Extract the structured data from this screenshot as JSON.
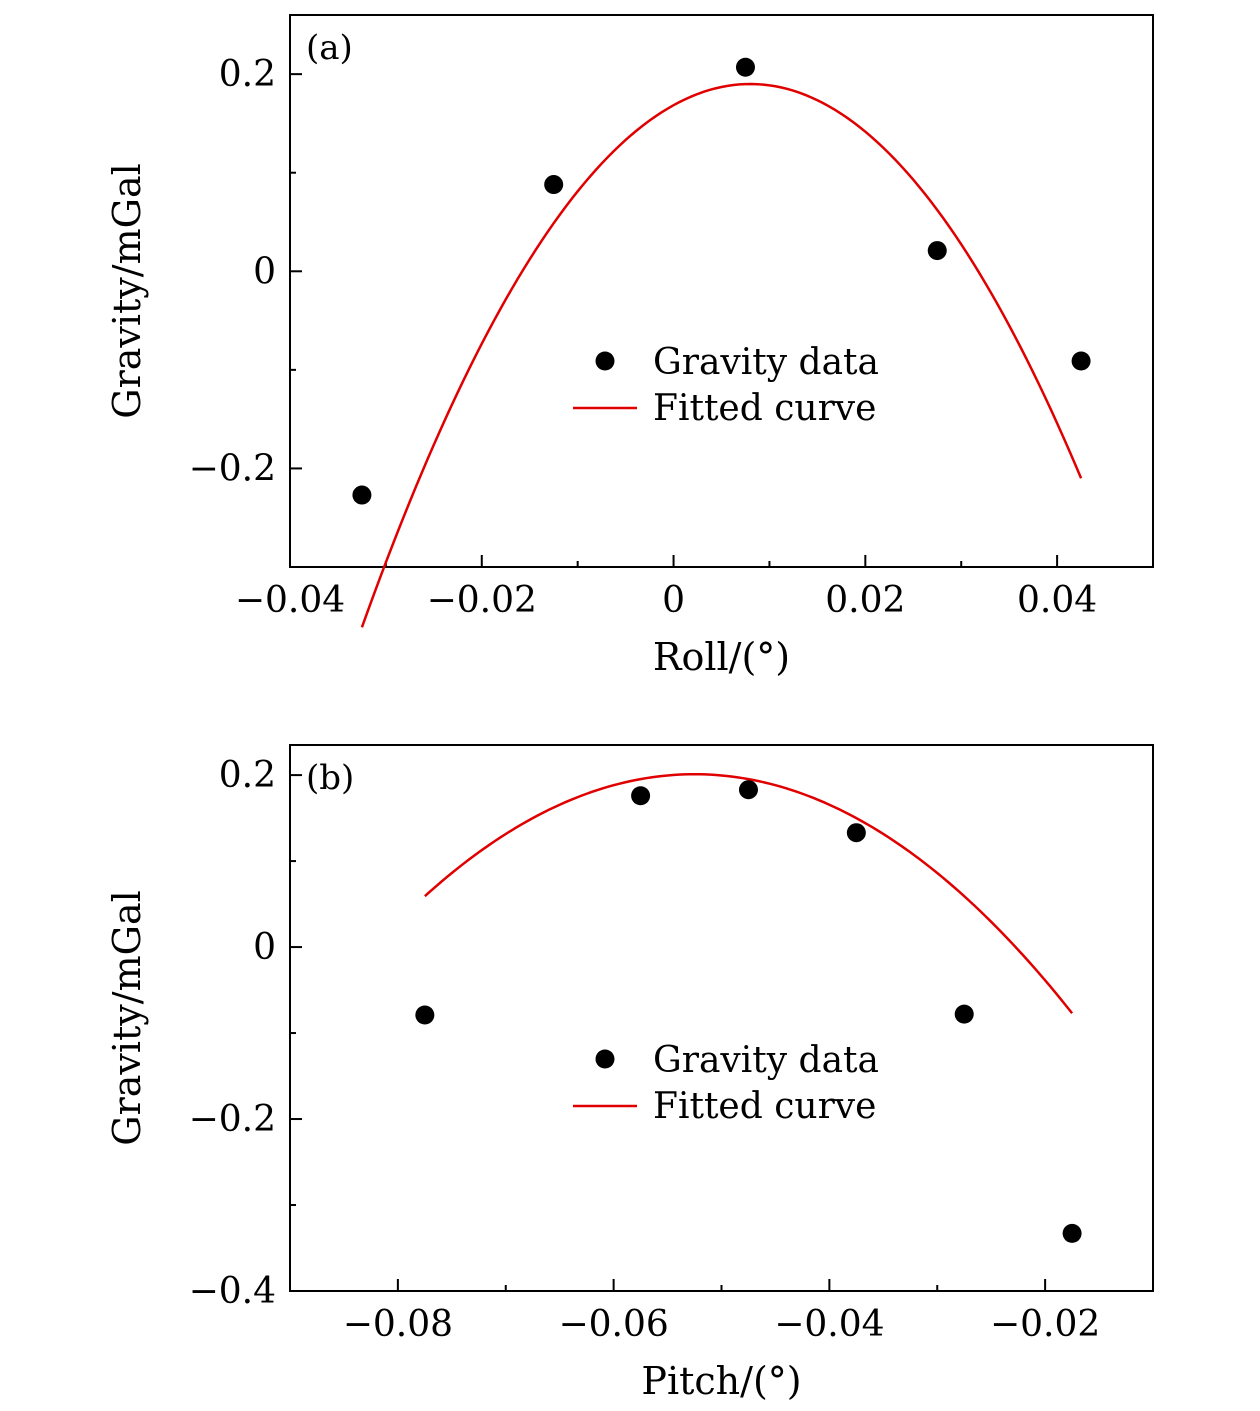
{
  "chart_data": [
    {
      "type": "scatter",
      "panel_label": "(a)",
      "xlabel": "Roll/(°)",
      "ylabel": "Gravity/mGal",
      "xlim": [
        -0.04,
        0.05
      ],
      "ylim": [
        -0.3,
        0.26
      ],
      "x_major_ticks": [
        -0.04,
        -0.02,
        0,
        0.02,
        0.04
      ],
      "x_tick_labels": [
        "−0.04",
        "−0.02",
        "0",
        "0.02",
        "0.04"
      ],
      "x_minor_ticks": [
        -0.03,
        -0.01,
        0.01,
        0.03
      ],
      "y_major_ticks": [
        -0.2,
        0,
        0.2
      ],
      "y_tick_labels": [
        "−0.2",
        "0",
        "0.2"
      ],
      "y_minor_ticks": [
        -0.1,
        0.1
      ],
      "legend_position": "center-right",
      "series": [
        {
          "name": "Gravity data",
          "kind": "points",
          "color": "#000000",
          "x": [
            -0.0325,
            -0.0125,
            0.0075,
            0.0275,
            0.0425
          ],
          "y": [
            -0.227,
            0.088,
            0.207,
            0.021,
            -0.091
          ]
        },
        {
          "name": "Fitted curve",
          "kind": "curve",
          "color": "#e00000",
          "fit": "quadratic",
          "x_range": [
            -0.0325,
            0.0425
          ],
          "vertex": [
            0.008,
            0.19
          ],
          "end_y": -0.21
        }
      ]
    },
    {
      "type": "scatter",
      "panel_label": "(b)",
      "xlabel": "Pitch/(°)",
      "ylabel": "Gravity/mGal",
      "xlim": [
        -0.09,
        -0.01
      ],
      "ylim": [
        -0.4,
        0.235
      ],
      "x_major_ticks": [
        -0.08,
        -0.06,
        -0.04,
        -0.02
      ],
      "x_tick_labels": [
        "−0.08",
        "−0.06",
        "−0.04",
        "−0.02"
      ],
      "x_minor_ticks": [
        -0.07,
        -0.05,
        -0.03
      ],
      "y_major_ticks": [
        -0.4,
        -0.2,
        0,
        0.2
      ],
      "y_tick_labels": [
        "−0.4",
        "−0.2",
        "0",
        "0.2"
      ],
      "y_minor_ticks": [
        -0.3,
        -0.1,
        0.1
      ],
      "legend_position": "center-right",
      "series": [
        {
          "name": "Gravity data",
          "kind": "points",
          "color": "#000000",
          "x": [
            -0.0775,
            -0.0575,
            -0.0475,
            -0.0375,
            -0.0275,
            -0.0175
          ],
          "y": [
            -0.079,
            0.176,
            0.183,
            0.133,
            -0.078,
            -0.333
          ]
        },
        {
          "name": "Fitted curve",
          "kind": "curve",
          "color": "#e00000",
          "fit": "quadratic",
          "x_range": [
            -0.0775,
            -0.0175
          ],
          "vertex": [
            -0.0525,
            0.201
          ],
          "end_y": -0.077
        }
      ]
    }
  ]
}
